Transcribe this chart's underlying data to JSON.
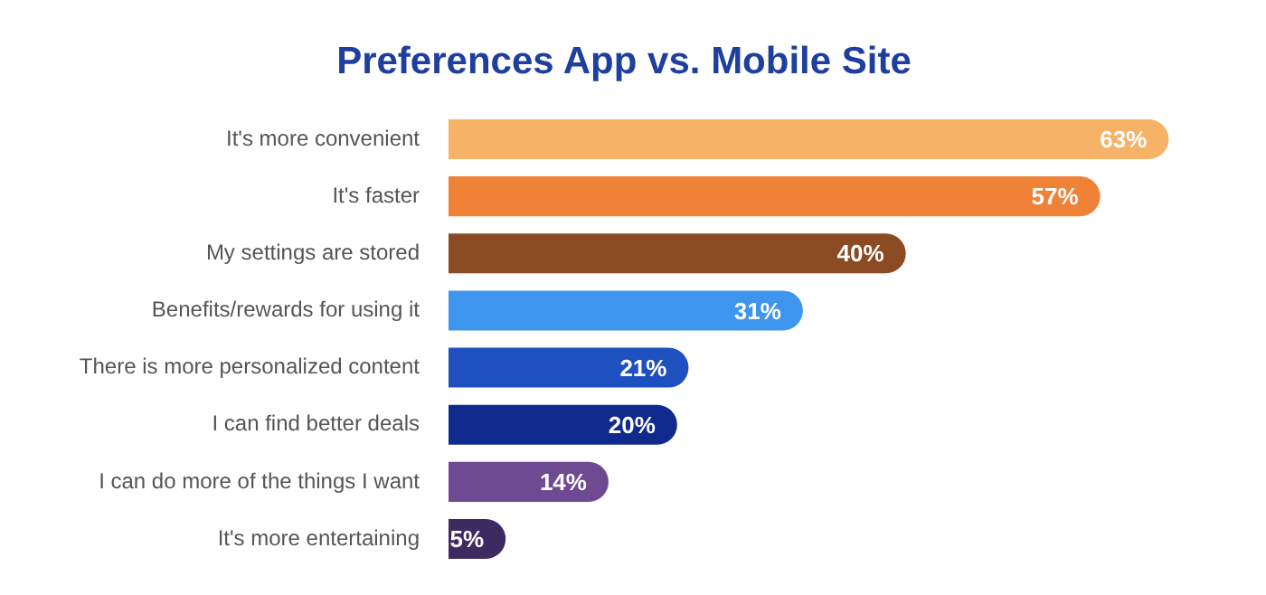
{
  "chart_data": {
    "type": "bar",
    "orientation": "horizontal",
    "title": "Preferences App vs. Mobile Site",
    "categories": [
      "It's more convenient",
      "It's faster",
      "My settings are stored",
      "Benefits/rewards for using it",
      "There is more personalized content",
      "I can find better deals",
      "I can do more of the things I want",
      "It's more entertaining"
    ],
    "values": [
      63,
      57,
      40,
      31,
      21,
      20,
      14,
      5
    ],
    "colors": [
      "#f6b267",
      "#ef8236",
      "#8a4a22",
      "#3d95ee",
      "#1e50c0",
      "#0f2a8c",
      "#6e4a92",
      "#3d2a60"
    ],
    "value_labels": [
      "63%",
      "57%",
      "40%",
      "31%",
      "21%",
      "20%",
      "14%",
      "5%"
    ],
    "legend": false
  }
}
